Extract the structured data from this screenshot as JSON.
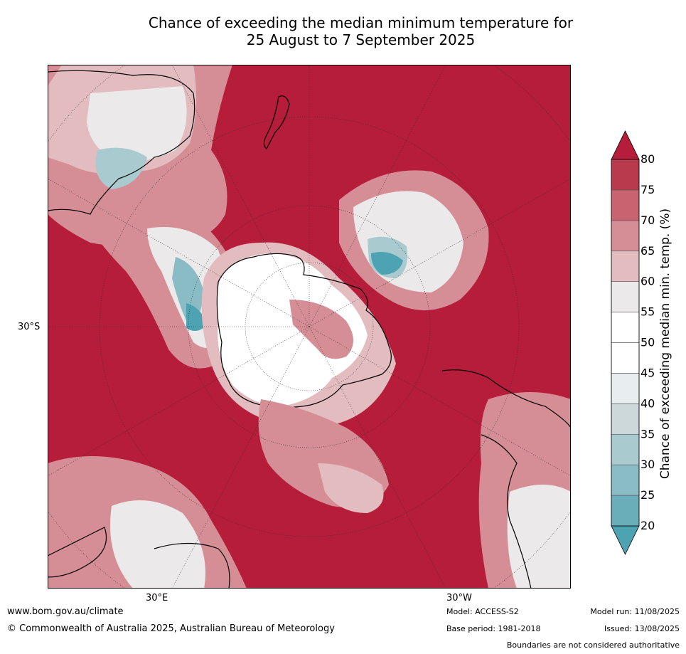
{
  "title": {
    "line1": "Chance of exceeding the median minimum temperature for",
    "line2": "25 August to 7 September 2025"
  },
  "map": {
    "lat_label": "30°S",
    "lon_label_left": "30°E",
    "lon_label_right": "30°W"
  },
  "colorbar": {
    "label": "Chance of exceeding median min. temp. (%)",
    "ticks": [
      "20",
      "25",
      "30",
      "35",
      "40",
      "45",
      "50",
      "55",
      "60",
      "65",
      "70",
      "75",
      "80"
    ],
    "colors": [
      "#4ea3b3",
      "#6aaeb9",
      "#89bcc4",
      "#a9cacf",
      "#ccd8da",
      "#e8eef0",
      "#ffffff",
      "#ffffff",
      "#ebe9e9",
      "#e3bcc0",
      "#d68e96",
      "#c8636f",
      "#b83a4c",
      "#b51d3a"
    ]
  },
  "footer": {
    "url": "www.bom.gov.au/climate",
    "copyright": "© Commonwealth of Australia 2025, Australian Bureau of Meteorology",
    "model": "Model: ACCESS-S2",
    "base_period": "Base period: 1981-2018",
    "model_run": "Model run: 11/08/2025",
    "issued": "Issued: 13/08/2025",
    "disclaimer": "Boundaries are not considered authoritative"
  }
}
